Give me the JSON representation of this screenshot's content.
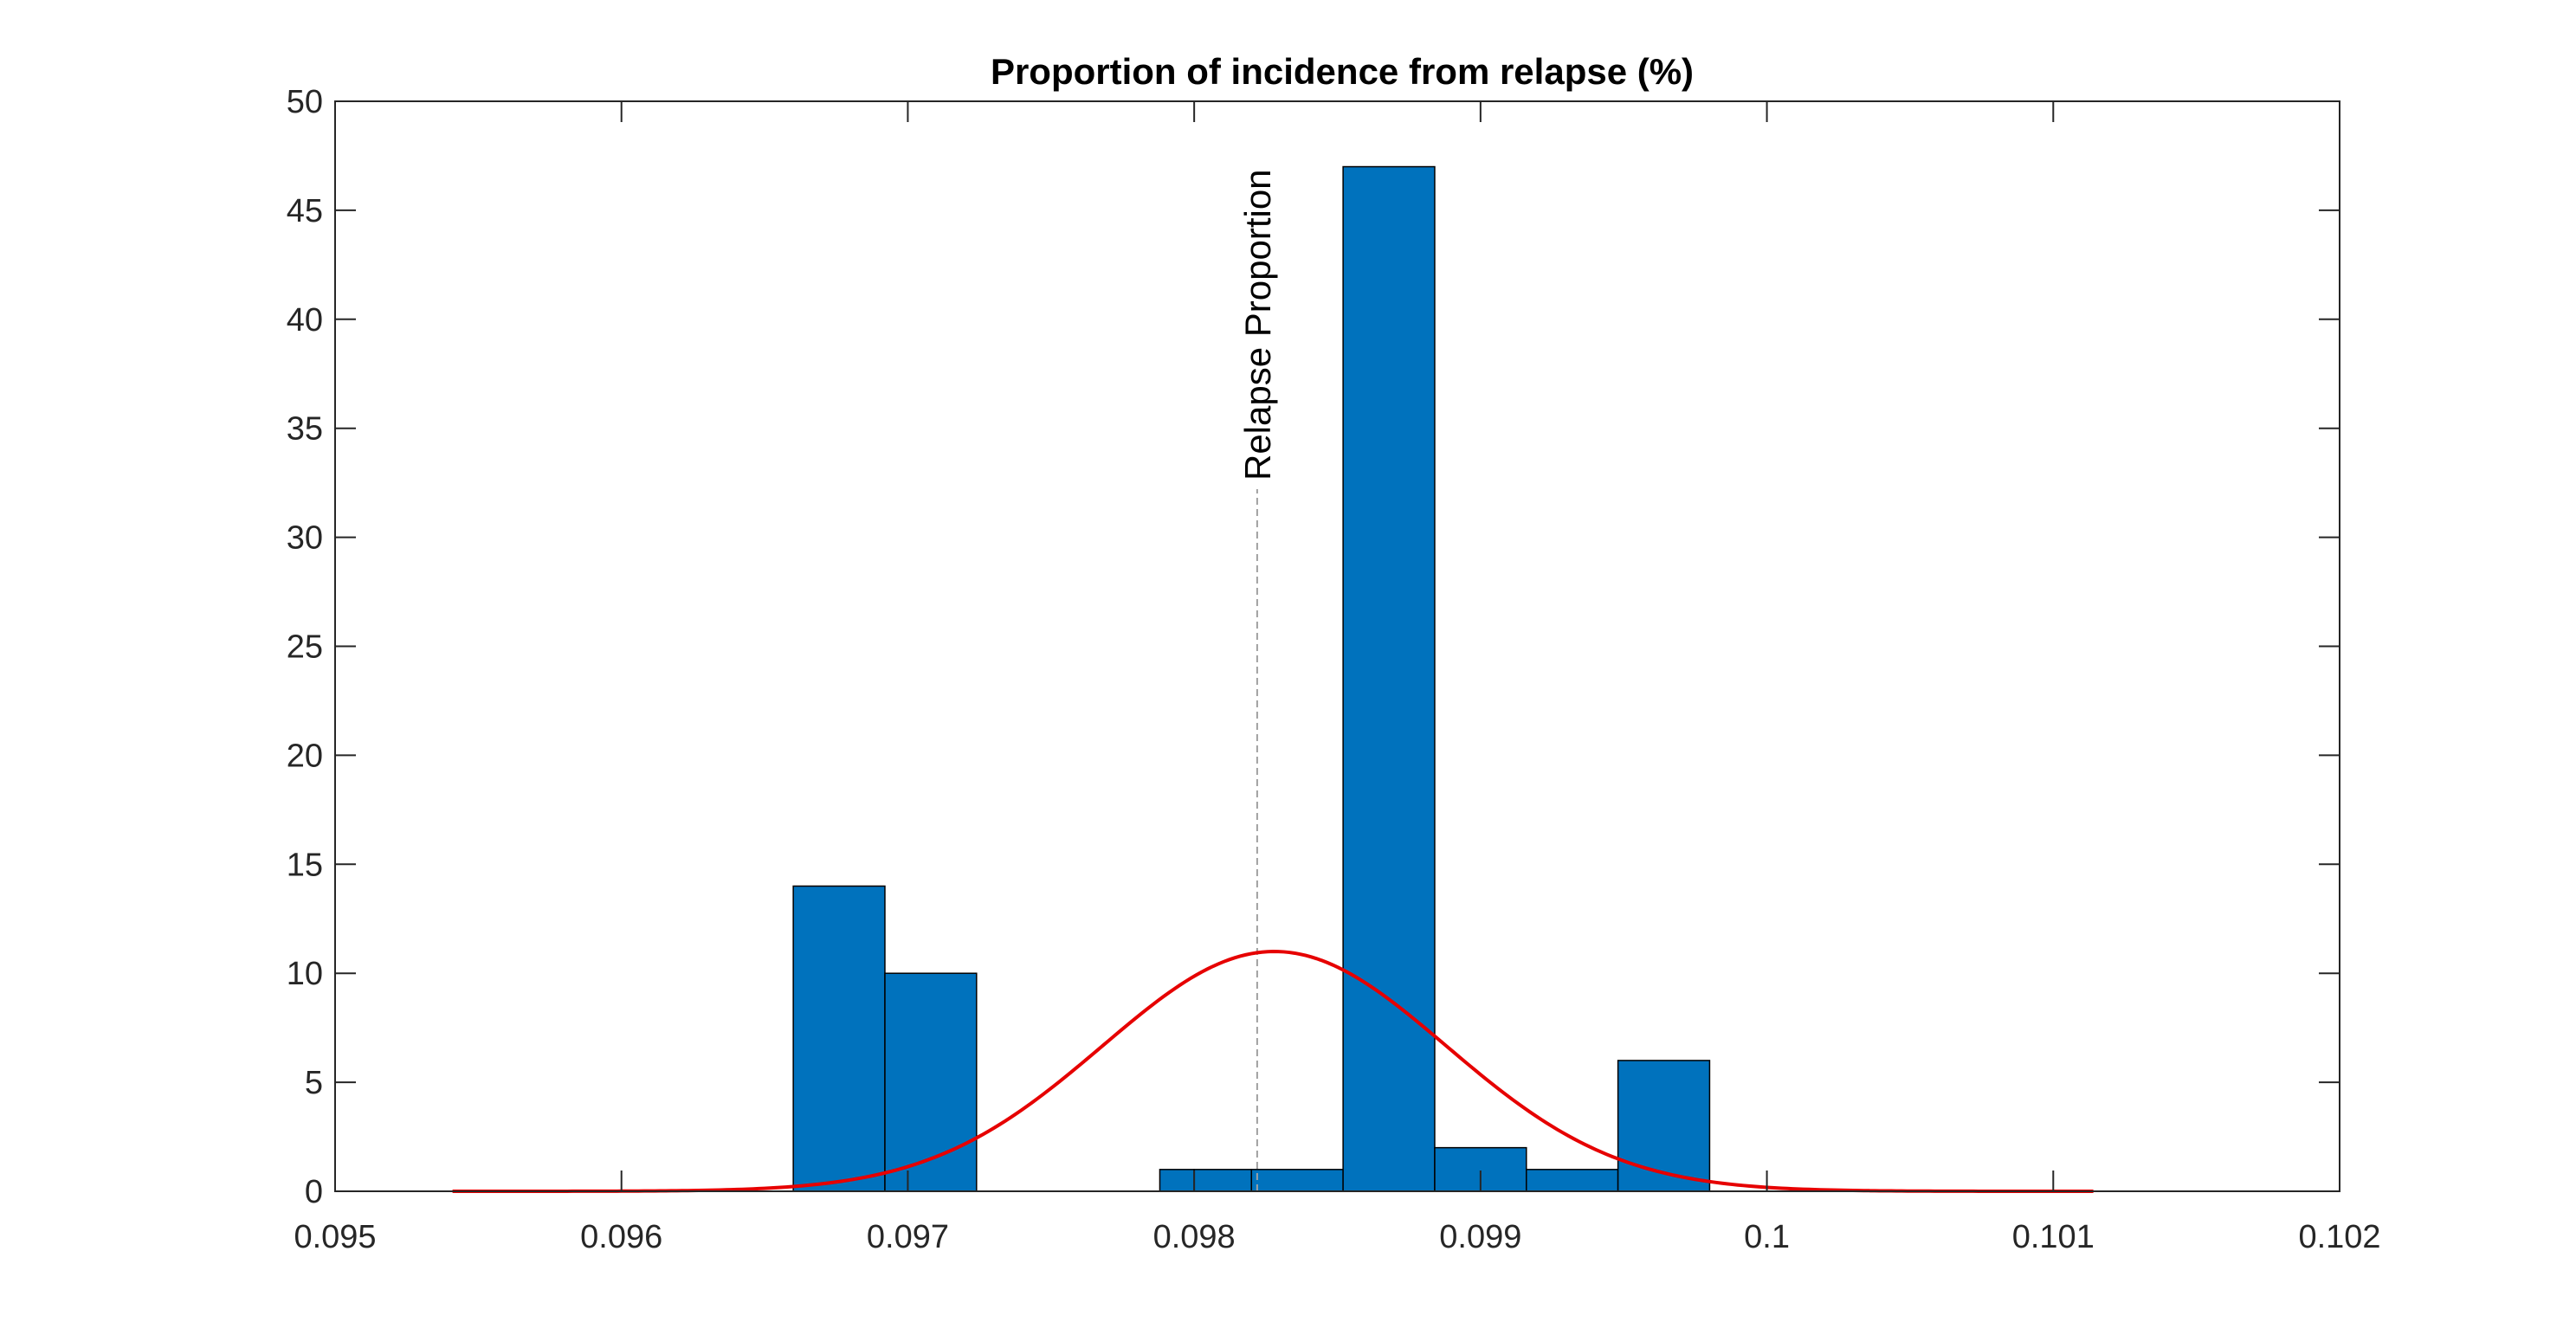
{
  "chart_data": {
    "type": "bar",
    "title": "Proportion of incidence from relapse (%)",
    "xlabel": "",
    "ylabel": "",
    "xlim": [
      0.095,
      0.102
    ],
    "ylim": [
      0,
      50
    ],
    "xticks": [
      "0.095",
      "0.096",
      "0.097",
      "0.098",
      "0.099",
      "0.1",
      "0.101",
      "0.102"
    ],
    "yticks": [
      "0",
      "5",
      "10",
      "15",
      "20",
      "25",
      "30",
      "35",
      "40",
      "45",
      "50"
    ],
    "grid": false,
    "legend": "none",
    "histogram": {
      "color": "#0072BD",
      "bins": [
        {
          "x0": 0.0966,
          "x1": 0.09692,
          "count": 14
        },
        {
          "x0": 0.09692,
          "x1": 0.09724,
          "count": 10
        },
        {
          "x0": 0.09788,
          "x1": 0.098,
          "count": 1
        },
        {
          "x0": 0.098,
          "x1": 0.0982,
          "count": 1
        },
        {
          "x0": 0.0982,
          "x1": 0.09852,
          "count": 1
        },
        {
          "x0": 0.09852,
          "x1": 0.09884,
          "count": 47
        },
        {
          "x0": 0.09884,
          "x1": 0.09916,
          "count": 2
        },
        {
          "x0": 0.09916,
          "x1": 0.09948,
          "count": 1
        },
        {
          "x0": 0.09948,
          "x1": 0.0998,
          "count": 6
        }
      ]
    },
    "fit_curve": {
      "type": "normal",
      "color": "#E60000",
      "mean": 0.09828,
      "peak": 11,
      "sigma": 0.0006,
      "x_range": [
        0.09541,
        0.10114
      ]
    },
    "reference_line": {
      "x": 0.09822,
      "label": "Relapse Proportion",
      "color": "#A0A0A0"
    }
  }
}
